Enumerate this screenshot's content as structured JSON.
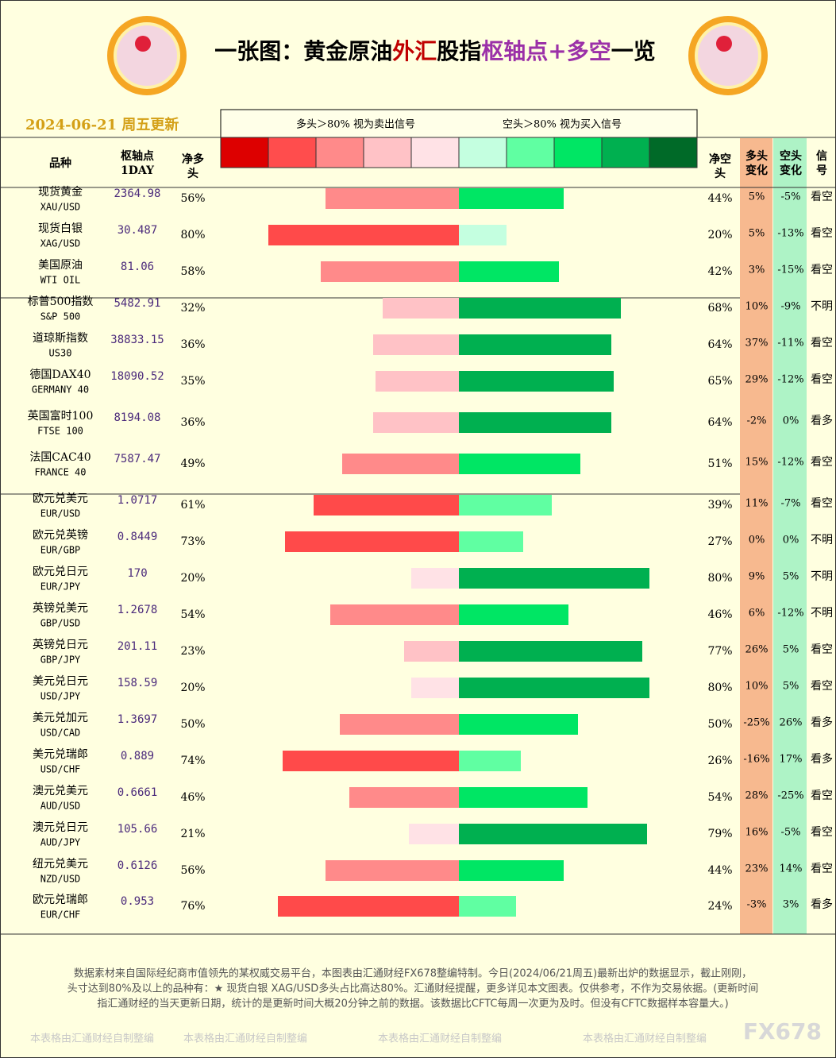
{
  "header": {
    "title_parts": [
      {
        "text": "一张图：黄金原油",
        "color": "#000000"
      },
      {
        "text": "外汇",
        "color": "#c00000"
      },
      {
        "text": "股指",
        "color": "#000000"
      },
      {
        "text": "枢轴点+多空",
        "color": "#9b30a8"
      },
      {
        "text": "一览",
        "color": "#000000"
      }
    ],
    "date": "2024-06-21 周五更新",
    "legend_left": "多头＞80% 视为卖出信号",
    "legend_right": "空头＞80% 视为买入信号",
    "legend_colors": [
      "#dd0000",
      "#ff4d4d",
      "#ff8a8a",
      "#ffc2c6",
      "#ffe2e6",
      "#c4ffe0",
      "#60ffa2",
      "#00e664",
      "#00b050",
      "#006a28"
    ]
  },
  "columns": {
    "name": "品种",
    "pivot": [
      "枢轴点",
      "1DAY"
    ],
    "long": [
      "净多",
      "头"
    ],
    "short": [
      "净空",
      "头"
    ],
    "long_change": [
      "多头",
      "变化"
    ],
    "short_change": [
      "空头",
      "变化"
    ],
    "signal": [
      "信",
      "号"
    ]
  },
  "rows": [
    {
      "name": "现货黄金",
      "code": "XAU/USD",
      "pivot": "2364.98",
      "long": 56,
      "long_label": "56%",
      "short": 44,
      "short_label": "44%",
      "long_change": "5%",
      "short_change": "-5%",
      "signal": "看空",
      "long_color": "#ff8a8a",
      "short_color": "#00e664"
    },
    {
      "name": "现货白银",
      "code": "XAG/USD",
      "pivot": "30.487",
      "long": 80,
      "long_label": "80%",
      "short": 20,
      "short_label": "20%",
      "long_change": "5%",
      "short_change": "-13%",
      "signal": "看空",
      "long_color": "#ff4a4a",
      "short_color": "#c4ffe0"
    },
    {
      "name": "美国原油",
      "code": "WTI OIL",
      "pivot": "81.06",
      "long": 58,
      "long_label": "58%",
      "short": 42,
      "short_label": "42%",
      "long_change": "3%",
      "short_change": "-15%",
      "signal": "看空",
      "long_color": "#ff8a8a",
      "short_color": "#00e664"
    },
    {
      "name": "标普500指数",
      "code": "S&P 500",
      "pivot": "5482.91",
      "long": 32,
      "long_label": "32%",
      "short": 68,
      "short_label": "68%",
      "long_change": "10%",
      "short_change": "-9%",
      "signal": "不明",
      "long_color": "#ffc2c6",
      "short_color": "#00b050"
    },
    {
      "name": "道琼斯指数",
      "code": "US30",
      "pivot": "38833.15",
      "long": 36,
      "long_label": "36%",
      "short": 64,
      "short_label": "64%",
      "long_change": "37%",
      "short_change": "-11%",
      "signal": "看空",
      "long_color": "#ffc2c6",
      "short_color": "#00b050"
    },
    {
      "name": "德国DAX40",
      "code": "GERMANY 40",
      "pivot": "18090.52",
      "long": 35,
      "long_label": "35%",
      "short": 65,
      "short_label": "65%",
      "long_change": "29%",
      "short_change": "-12%",
      "signal": "看空",
      "long_color": "#ffc2c6",
      "short_color": "#00b050"
    },
    {
      "name": "英国富时100",
      "code": "FTSE 100",
      "pivot": "8194.08",
      "long": 36,
      "long_label": "36%",
      "short": 64,
      "short_label": "64%",
      "long_change": "-2%",
      "short_change": "0%",
      "signal": "看多",
      "long_color": "#ffc2c6",
      "short_color": "#00b050"
    },
    {
      "name": "法国CAC40",
      "code": "FRANCE 40",
      "pivot": "7587.47",
      "long": 49,
      "long_label": "49%",
      "short": 51,
      "short_label": "51%",
      "long_change": "15%",
      "short_change": "-12%",
      "signal": "看空",
      "long_color": "#ff8a8a",
      "short_color": "#00e664"
    },
    {
      "name": "欧元兑美元",
      "code": "EUR/USD",
      "pivot": "1.0717",
      "long": 61,
      "long_label": "61%",
      "short": 39,
      "short_label": "39%",
      "long_change": "11%",
      "short_change": "-7%",
      "signal": "看空",
      "long_color": "#ff4a4a",
      "short_color": "#60ffa2"
    },
    {
      "name": "欧元兑英镑",
      "code": "EUR/GBP",
      "pivot": "0.8449",
      "long": 73,
      "long_label": "73%",
      "short": 27,
      "short_label": "27%",
      "long_change": "0%",
      "short_change": "0%",
      "signal": "不明",
      "long_color": "#ff4a4a",
      "short_color": "#60ffa2"
    },
    {
      "name": "欧元兑日元",
      "code": "EUR/JPY",
      "pivot": "170",
      "long": 20,
      "long_label": "20%",
      "short": 80,
      "short_label": "80%",
      "long_change": "9%",
      "short_change": "5%",
      "signal": "不明",
      "long_color": "#ffe2e6",
      "short_color": "#00b050"
    },
    {
      "name": "英镑兑美元",
      "code": "GBP/USD",
      "pivot": "1.2678",
      "long": 54,
      "long_label": "54%",
      "short": 46,
      "short_label": "46%",
      "long_change": "6%",
      "short_change": "-12%",
      "signal": "不明",
      "long_color": "#ff8a8a",
      "short_color": "#00e664"
    },
    {
      "name": "英镑兑日元",
      "code": "GBP/JPY",
      "pivot": "201.11",
      "long": 23,
      "long_label": "23%",
      "short": 77,
      "short_label": "77%",
      "long_change": "26%",
      "short_change": "5%",
      "signal": "看空",
      "long_color": "#ffc2c6",
      "short_color": "#00b050"
    },
    {
      "name": "美元兑日元",
      "code": "USD/JPY",
      "pivot": "158.59",
      "long": 20,
      "long_label": "20%",
      "short": 80,
      "short_label": "80%",
      "long_change": "10%",
      "short_change": "5%",
      "signal": "看空",
      "long_color": "#ffe2e6",
      "short_color": "#00b050"
    },
    {
      "name": "美元兑加元",
      "code": "USD/CAD",
      "pivot": "1.3697",
      "long": 50,
      "long_label": "50%",
      "short": 50,
      "short_label": "50%",
      "long_change": "-25%",
      "short_change": "26%",
      "signal": "看多",
      "long_color": "#ff8a8a",
      "short_color": "#00e664"
    },
    {
      "name": "美元兑瑞郎",
      "code": "USD/CHF",
      "pivot": "0.889",
      "long": 74,
      "long_label": "74%",
      "short": 26,
      "short_label": "26%",
      "long_change": "-16%",
      "short_change": "17%",
      "signal": "看多",
      "long_color": "#ff4a4a",
      "short_color": "#60ffa2"
    },
    {
      "name": "澳元兑美元",
      "code": "AUD/USD",
      "pivot": "0.6661",
      "long": 46,
      "long_label": "46%",
      "short": 54,
      "short_label": "54%",
      "long_change": "28%",
      "short_change": "-25%",
      "signal": "看空",
      "long_color": "#ff8a8a",
      "short_color": "#00e664"
    },
    {
      "name": "澳元兑日元",
      "code": "AUD/JPY",
      "pivot": "105.66",
      "long": 21,
      "long_label": "21%",
      "short": 79,
      "short_label": "79%",
      "long_change": "16%",
      "short_change": "-5%",
      "signal": "看空",
      "long_color": "#ffe2e6",
      "short_color": "#00b050"
    },
    {
      "name": "纽元兑美元",
      "code": "NZD/USD",
      "pivot": "0.6126",
      "long": 56,
      "long_label": "56%",
      "short": 44,
      "short_label": "44%",
      "long_change": "23%",
      "short_change": "14%",
      "signal": "看空",
      "long_color": "#ff8a8a",
      "short_color": "#00e664"
    },
    {
      "name": "欧元兑瑞郎",
      "code": "EUR/CHF",
      "pivot": "0.953",
      "long": 76,
      "long_label": "76%",
      "short": 24,
      "short_label": "24%",
      "long_change": "-3%",
      "short_change": "3%",
      "signal": "看多",
      "long_color": "#ff4a4a",
      "short_color": "#60ffa2"
    }
  ],
  "footer": {
    "lines": [
      "数据素材来自国际经纪商市值领先的某权威交易平台，本图表由汇通财经FX678整编特制。今日(2024/06/21周五)最新出炉的数据显示，截止刚刚，",
      "头寸达到80%及以上的品种有：★ 现货白银 XAG/USD多头占比高达80%。汇通财经提醒，更多详见本文图表。仅供参考，不作为交易依据。(更新时间",
      "指汇通财经的当天更新日期，统计的是更新时间大概20分钟之前的数据。该数据比CFTC每周一次更为及时。但没有CFTC数据样本容量大。)"
    ],
    "watermarks": [
      "本表格由汇通财经自制整编",
      "本表格由汇通财经自制整编",
      "本表格由汇通财经自制整编",
      "本表格由汇通财经自制整编"
    ],
    "brand": "FX678"
  }
}
